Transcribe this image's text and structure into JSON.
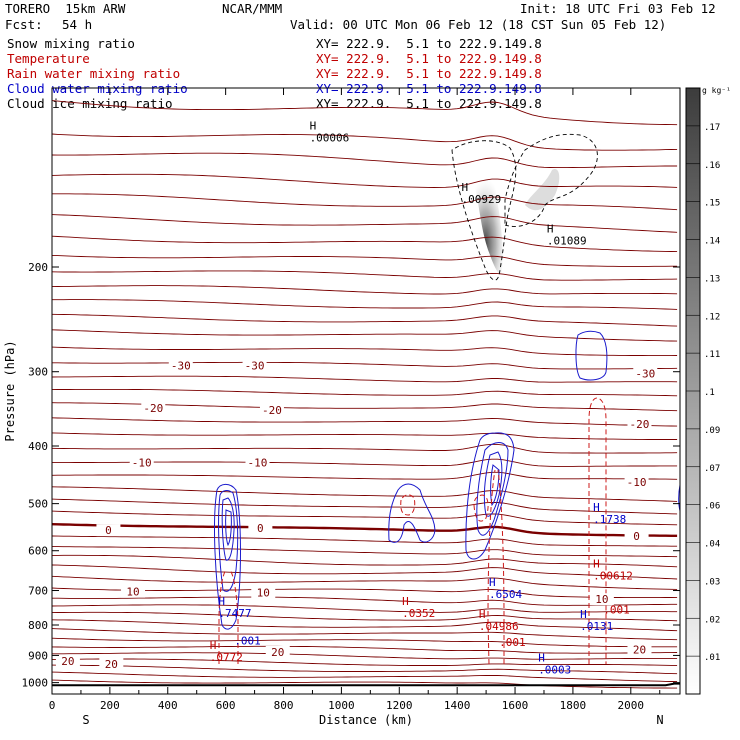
{
  "header": {
    "model": "TORERO  15km ARW",
    "source": "NCAR/MMM",
    "init": "Init: 18 UTC Fri 03 Feb 12",
    "fcst_label": "Fcst:",
    "fcst_value": "54 h",
    "valid": "Valid: 00 UTC Mon 06 Feb 12 (18 CST Sun 05 Feb 12)",
    "fields": [
      {
        "name": "Snow mixing ratio",
        "xy": "XY= 222.9.  5.1 to 222.9.149.8",
        "color": "#000000"
      },
      {
        "name": "Temperature",
        "xy": "XY= 222.9.  5.1 to 222.9.149.8",
        "color": "#c00000"
      },
      {
        "name": "Rain water mixing ratio",
        "xy": "XY= 222.9.  5.1 to 222.9.149.8",
        "color": "#c00000"
      },
      {
        "name": "Cloud water mixing ratio",
        "xy": "XY= 222.9.  5.1 to 222.9.149.8",
        "color": "#0000c8"
      },
      {
        "name": "Cloud ice mixing ratio",
        "xy": "XY= 222.9.  5.1 to 222.9.149.8",
        "color": "#000000"
      }
    ]
  },
  "chart_data": {
    "type": "cross-section contour",
    "xlabel": "Distance (km)",
    "ylabel": "Pressure (hPa)",
    "x_ticks": [
      0,
      200,
      400,
      600,
      800,
      1000,
      1200,
      1400,
      1600,
      1800,
      2000
    ],
    "y_ticks": [
      200,
      300,
      400,
      500,
      600,
      700,
      800,
      900,
      1000
    ],
    "xlim": [
      0,
      2170
    ],
    "ylim": [
      1045,
      100
    ],
    "y_scale": "log",
    "left_label": "S",
    "right_label": "N",
    "colorbar": {
      "unit": "g kg⁻¹",
      "ticks": [
        ".01",
        ".02",
        ".03",
        ".04",
        ".06",
        ".07",
        ".09",
        ".1",
        ".11",
        ".12",
        ".13",
        ".14",
        ".15",
        ".16",
        ".17"
      ]
    },
    "temperature_labels": [
      {
        "x": 445,
        "p": 293,
        "text": "-30"
      },
      {
        "x": 700,
        "p": 293,
        "text": "-30"
      },
      {
        "x": 2050,
        "p": 302,
        "text": "-30"
      },
      {
        "x": 350,
        "p": 345,
        "text": "-20"
      },
      {
        "x": 760,
        "p": 348,
        "text": "-20"
      },
      {
        "x": 2030,
        "p": 367,
        "text": "-20"
      },
      {
        "x": 310,
        "p": 426,
        "text": "-10"
      },
      {
        "x": 710,
        "p": 426,
        "text": "-10"
      },
      {
        "x": 2020,
        "p": 460,
        "text": "-10"
      },
      {
        "x": 195,
        "p": 554,
        "text": "0"
      },
      {
        "x": 720,
        "p": 550,
        "text": "0"
      },
      {
        "x": 2020,
        "p": 567,
        "text": "0"
      },
      {
        "x": 280,
        "p": 703,
        "text": "10"
      },
      {
        "x": 730,
        "p": 705,
        "text": "10"
      },
      {
        "x": 1900,
        "p": 724,
        "text": "10"
      },
      {
        "x": 55,
        "p": 920,
        "text": "20"
      },
      {
        "x": 205,
        "p": 930,
        "text": "20"
      },
      {
        "x": 780,
        "p": 888,
        "text": "20"
      },
      {
        "x": 2030,
        "p": 880,
        "text": "20"
      }
    ],
    "maxima": [
      {
        "x": 1415,
        "p": 155,
        "value": ".00929",
        "color": "#000000"
      },
      {
        "x": 1710,
        "p": 182,
        "value": ".01089",
        "color": "#000000"
      },
      {
        "x": 890,
        "p": 122,
        "value": ".00006",
        "color": "#000000"
      },
      {
        "x": 1870,
        "p": 535,
        "value": ".1738",
        "color": "#0000c8"
      },
      {
        "x": 1870,
        "p": 665,
        "value": ".00612",
        "color": "#c00000"
      },
      {
        "x": 1510,
        "p": 715,
        "value": ".6504",
        "color": "#0000c8"
      },
      {
        "x": 575,
        "p": 770,
        "value": ".7477",
        "color": "#0000c8"
      },
      {
        "x": 1210,
        "p": 770,
        "value": ".0352",
        "color": "#c00000"
      },
      {
        "x": 1475,
        "p": 810,
        "value": ".04986",
        "color": "#c00000"
      },
      {
        "x": 1825,
        "p": 810,
        "value": ".0131",
        "color": "#0000c8"
      },
      {
        "x": 545,
        "p": 912,
        "value": ".0772",
        "color": "#c00000"
      },
      {
        "x": 1680,
        "p": 958,
        "value": ".0003",
        "color": "#0000c8"
      }
    ],
    "contour_values": [
      {
        "x": 630,
        "p": 863,
        "text": ".001",
        "color": "#0000c8"
      },
      {
        "x": 1545,
        "p": 867,
        "text": ".001",
        "color": "#c00000"
      },
      {
        "x": 1905,
        "p": 765,
        "text": ".001",
        "color": "#c00000"
      }
    ]
  }
}
